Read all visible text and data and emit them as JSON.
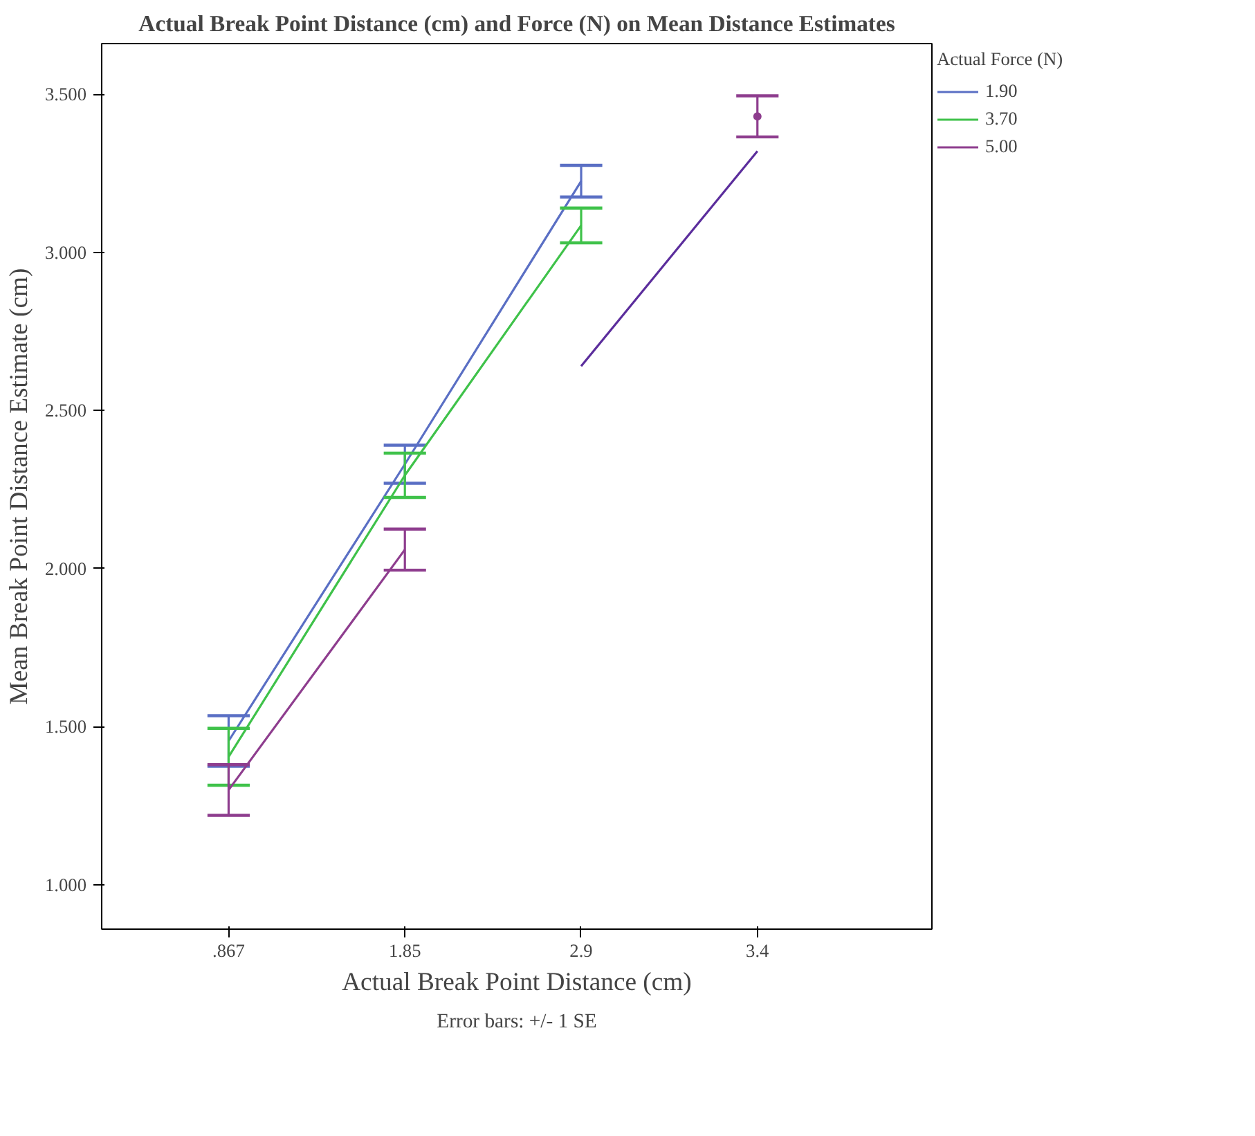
{
  "chart_data": {
    "type": "line",
    "title": "Actual Break Point Distance (cm) and Force (N) on Mean Distance Estimates",
    "xlabel": "Actual Break Point Distance (cm)",
    "ylabel": "Mean Break Point Distance Estimate (cm)",
    "legend_title": "Actual Force (N)",
    "annotations": [
      "Error bars: +/- 1 SE"
    ],
    "categories": [
      ".867",
      "1.85",
      "2.9",
      "3.4"
    ],
    "ylim": [
      0.86,
      3.66
    ],
    "yticks": [
      {
        "value": 1,
        "label": "1.000"
      },
      {
        "value": 1.5,
        "label": "1.500"
      },
      {
        "value": 2,
        "label": "2.000"
      },
      {
        "value": 2.5,
        "label": "2.500"
      },
      {
        "value": 3,
        "label": "3.000"
      },
      {
        "value": 3.5,
        "label": "3.500"
      }
    ],
    "series": [
      {
        "name": "1.90",
        "color": "#5a6fc4",
        "values": [
          1.455,
          2.33,
          3.225,
          null
        ],
        "errors": [
          0.08,
          0.06,
          0.05,
          null
        ]
      },
      {
        "name": "3.70",
        "color": "#3fc24a",
        "values": [
          1.405,
          2.295,
          3.085,
          null
        ],
        "errors": [
          0.09,
          0.07,
          0.055,
          null
        ]
      },
      {
        "name": "5.00",
        "color": "#8e3d8e",
        "values": [
          1.3,
          2.06,
          null,
          3.43
        ],
        "errors": [
          0.08,
          0.065,
          null,
          0.065
        ]
      },
      {
        "type": "line",
        "color": "#5b2d9c",
        "values": [
          null,
          null,
          2.64,
          3.32
        ]
      }
    ],
    "grid": false,
    "legend": "top right",
    "marker": "none",
    "line_style": "solid"
  }
}
